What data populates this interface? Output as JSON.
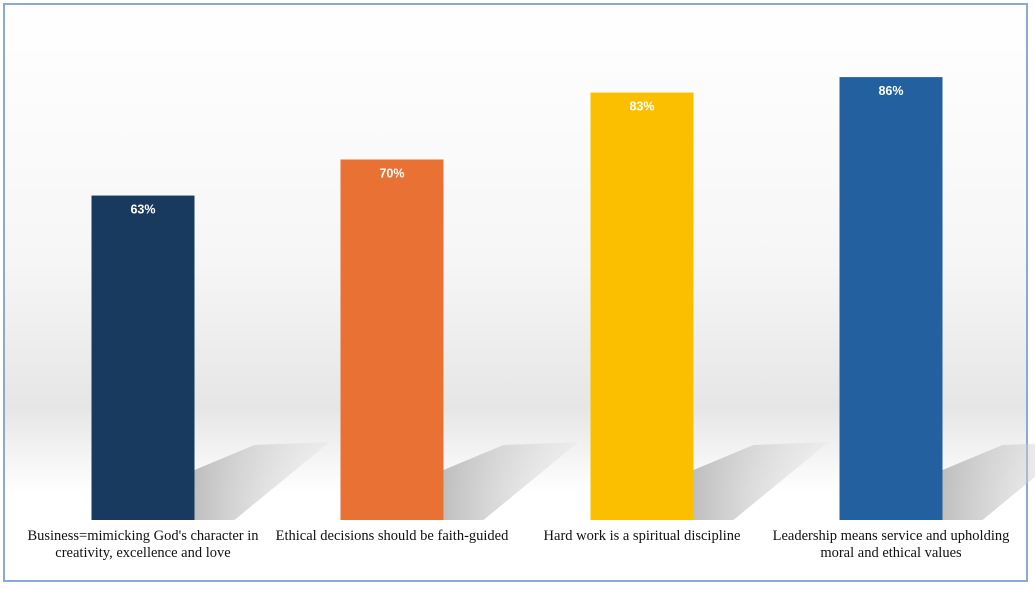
{
  "chart_data": {
    "type": "bar",
    "categories": [
      "Business=mimicking God's character in creativity, excellence and love",
      "Ethical decisions should be faith-guided",
      "Hard work is a spiritual discipline",
      "Leadership means service and upholding moral and ethical values"
    ],
    "values": [
      63,
      70,
      83,
      86
    ],
    "value_labels": [
      "63%",
      "70%",
      "83%",
      "86%"
    ],
    "colors": [
      "#183a5e",
      "#e97134",
      "#fbbf00",
      "#23609f"
    ]
  }
}
